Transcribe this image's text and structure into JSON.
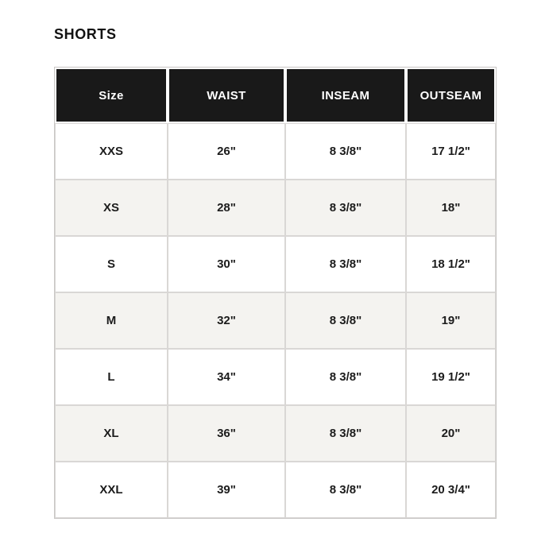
{
  "page": {
    "title": "SHORTS"
  },
  "colors": {
    "header_bg": "#191919",
    "header_text": "#ffffff",
    "row_alt_bg": "#f4f3f0",
    "row_bg": "#ffffff",
    "border_inner": "#d9d7d5",
    "border_outer": "#c9c7c5",
    "body_text": "#1c1c1c"
  },
  "table": {
    "columns": [
      "Size",
      "WAIST",
      "INSEAM",
      "OUTSEAM"
    ],
    "rows": [
      [
        "XXS",
        "26\"",
        "8 3/8\"",
        "17 1/2\""
      ],
      [
        "XS",
        "28\"",
        "8 3/8\"",
        "18\""
      ],
      [
        "S",
        "30\"",
        "8 3/8\"",
        "18 1/2\""
      ],
      [
        "M",
        "32\"",
        "8 3/8\"",
        "19\""
      ],
      [
        "L",
        "34\"",
        "8 3/8\"",
        "19 1/2\""
      ],
      [
        "XL",
        "36\"",
        "8 3/8\"",
        "20\""
      ],
      [
        "XXL",
        "39\"",
        "8 3/8\"",
        "20 3/4\""
      ]
    ]
  },
  "chart_data": {
    "type": "table",
    "title": "SHORTS",
    "columns": [
      "Size",
      "WAIST",
      "INSEAM",
      "OUTSEAM"
    ],
    "rows": [
      [
        "XXS",
        "26\"",
        "8 3/8\"",
        "17 1/2\""
      ],
      [
        "XS",
        "28\"",
        "8 3/8\"",
        "18\""
      ],
      [
        "S",
        "30\"",
        "8 3/8\"",
        "18 1/2\""
      ],
      [
        "M",
        "32\"",
        "8 3/8\"",
        "19\""
      ],
      [
        "L",
        "34\"",
        "8 3/8\"",
        "19 1/2\""
      ],
      [
        "XL",
        "36\"",
        "8 3/8\"",
        "20\""
      ],
      [
        "XXL",
        "39\"",
        "8 3/8\"",
        "20 3/4\""
      ]
    ]
  }
}
